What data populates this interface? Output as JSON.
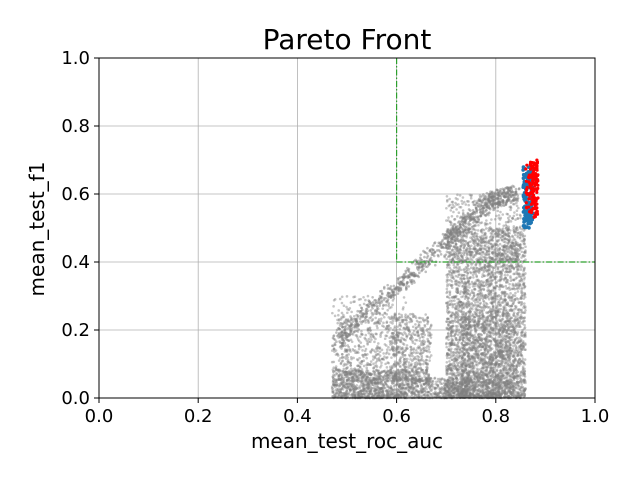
{
  "chart_data": {
    "type": "scatter",
    "title": "Pareto Front",
    "xlabel": "mean_test_roc_auc",
    "ylabel": "mean_test_f1",
    "xlim": [
      0.0,
      1.0
    ],
    "ylim": [
      0.0,
      1.0
    ],
    "xticks": [
      "0.0",
      "0.2",
      "0.4",
      "0.6",
      "0.8",
      "1.0"
    ],
    "yticks": [
      "0.0",
      "0.2",
      "0.4",
      "0.6",
      "0.8",
      "1.0"
    ],
    "grid": true,
    "legend": "none",
    "thresholds": {
      "x": 0.6,
      "y": 0.4,
      "color": "#2ca02c"
    },
    "colors": {
      "all_trials": "#808080",
      "pareto_blue": "#1f77b4",
      "pareto_red": "#ff0000"
    },
    "series": [
      {
        "role": "all-trials",
        "clusters": [
          {
            "x": [
              0.47,
              0.62
            ],
            "y": [
              0.0,
              0.08
            ],
            "n": 900
          },
          {
            "x": [
              0.62,
              0.75
            ],
            "y": [
              0.0,
              0.06
            ],
            "n": 450
          },
          {
            "x": [
              0.59,
              0.67
            ],
            "y": [
              0.05,
              0.25
            ],
            "n": 500
          },
          {
            "x": [
              0.7,
              0.86
            ],
            "y": [
              0.0,
              0.5
            ],
            "n": 3500
          },
          {
            "x": [
              0.73,
              0.83
            ],
            "y": [
              0.0,
              0.25
            ],
            "n": 700
          },
          {
            "x": [
              0.47,
              0.62
            ],
            "y": [
              0.05,
              0.3
            ],
            "n": 400
          },
          {
            "x": [
              0.7,
              0.85
            ],
            "y": [
              0.4,
              0.6
            ],
            "n": 500
          },
          {
            "x": [
              0.48,
              0.6
            ],
            "y": [
              0.08,
              0.25
            ],
            "n": 200
          }
        ],
        "ridge": [
          [
            0.48,
            0.2
          ],
          [
            0.6,
            0.35
          ],
          [
            0.7,
            0.48
          ],
          [
            0.78,
            0.6
          ],
          [
            0.84,
            0.63
          ]
        ]
      },
      {
        "role": "pareto-blue",
        "x": [
          0.855,
          0.875
        ],
        "y": [
          0.48,
          0.68
        ],
        "n": 150
      },
      {
        "role": "pareto-red",
        "x": [
          0.86,
          0.885
        ],
        "y": [
          0.53,
          0.7
        ],
        "n": 140
      }
    ]
  }
}
